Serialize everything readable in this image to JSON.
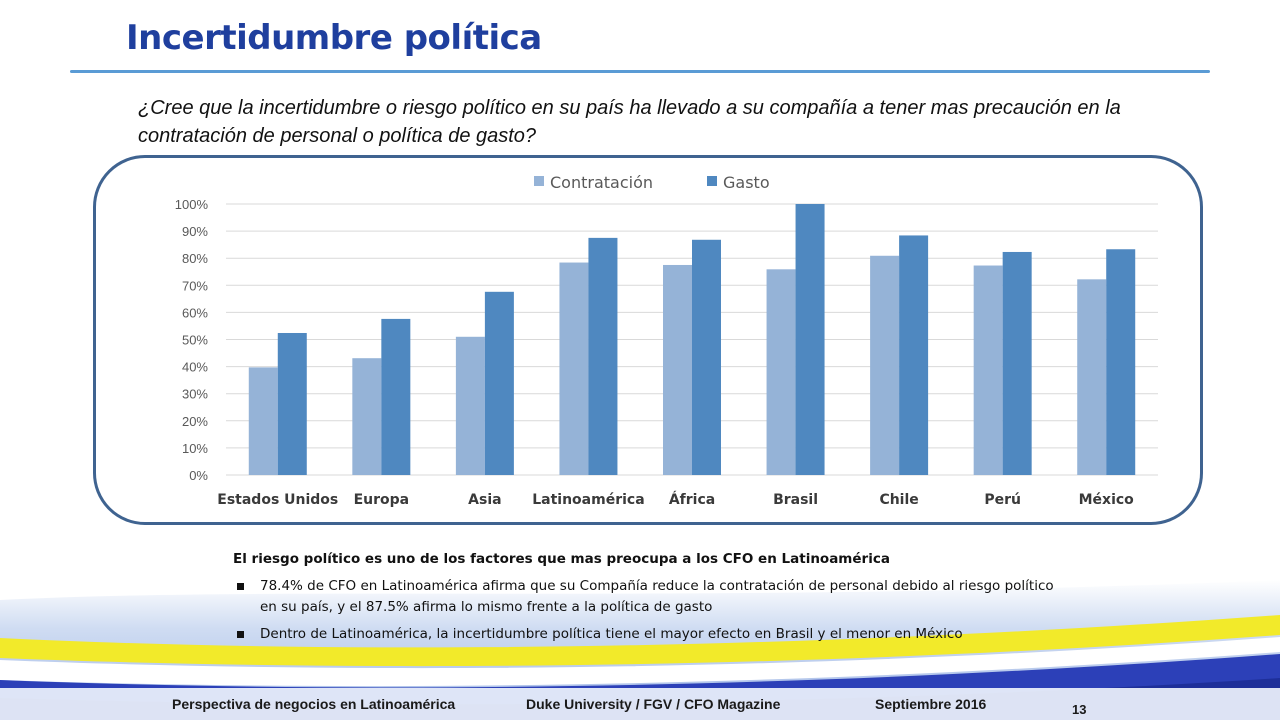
{
  "slide": {
    "title": "Incertidumbre política",
    "question": "¿Cree que la incertidumbre o riesgo político en su país ha llevado a su compañía a tener mas precaución en la contratación de personal o política de gasto?"
  },
  "chart_data": {
    "type": "bar",
    "categories": [
      "Estados Unidos",
      "Europa",
      "Asia",
      "Latinoamérica",
      "África",
      "Brasil",
      "Chile",
      "Perú",
      "México"
    ],
    "series": [
      {
        "name": "Contratación",
        "color": "#95b3d7",
        "values": [
          39.7,
          43.1,
          51.0,
          78.4,
          77.5,
          75.9,
          80.9,
          77.3,
          72.2
        ]
      },
      {
        "name": "Gasto",
        "color": "#4f88c0",
        "values": [
          52.4,
          57.6,
          67.6,
          87.5,
          86.8,
          100.0,
          88.4,
          82.3,
          83.3
        ]
      }
    ],
    "ylim": [
      0,
      100
    ],
    "yticks": [
      "0%",
      "10%",
      "20%",
      "30%",
      "40%",
      "50%",
      "60%",
      "70%",
      "80%",
      "90%",
      "100%"
    ],
    "grid": true,
    "legend_position": "top"
  },
  "summary": {
    "heading": "El riesgo político es uno de los factores que mas preocupa a los CFO en Latinoamérica",
    "bullets": [
      "78.4% de CFO en Latinoamérica afirma que su Compañía reduce la contratación de personal debido al riesgo político en su país, y el 87.5% afirma lo mismo frente a la política de gasto",
      "Dentro de Latinoamérica, la incertidumbre política tiene el mayor efecto en Brasil y el menor en México"
    ]
  },
  "footer": {
    "left": "Perspectiva de negocios en Latinoamérica",
    "center": "Duke University / FGV / CFO Magazine",
    "right": "Septiembre 2016",
    "page": "13"
  }
}
